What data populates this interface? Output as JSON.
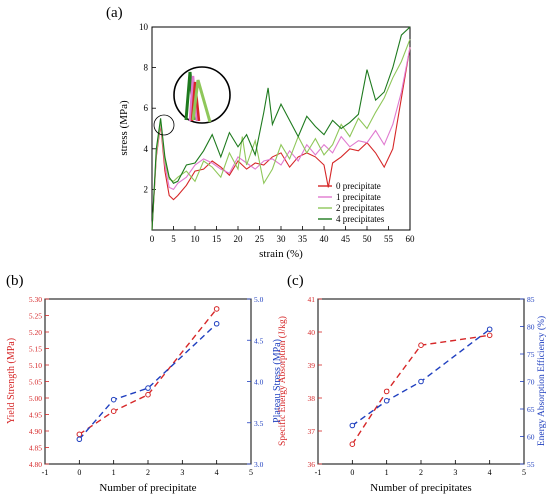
{
  "panel_labels": {
    "a": "(a)",
    "b": "(b)",
    "c": "(c)"
  },
  "colors": {
    "red": "#d62728",
    "blue": "#1f3fbf",
    "green0": "#e04040",
    "pink": "#e07ad0",
    "lightgreen": "#8fc75a",
    "darkgreen": "#1e7a1e"
  },
  "chart_data": [
    {
      "id": "a",
      "type": "line",
      "title": "",
      "xlabel": "strain (%)",
      "ylabel": "stress (MPa)",
      "xlim": [
        0,
        60
      ],
      "ylim": [
        0,
        10
      ],
      "xticks": [
        0,
        5,
        10,
        15,
        20,
        25,
        30,
        35,
        40,
        45,
        50,
        55,
        60
      ],
      "yticks": [
        2,
        4,
        6,
        8,
        10
      ],
      "legend_position": "bottom-right",
      "series": [
        {
          "name": "0 precipitate",
          "color": "#d62728",
          "x": [
            0,
            1,
            2,
            3,
            4,
            5,
            6,
            8,
            10,
            12,
            14,
            16,
            18,
            20,
            22,
            24,
            26,
            28,
            30,
            32,
            34,
            36,
            38,
            40,
            41,
            42,
            44,
            46,
            48,
            50,
            52,
            54,
            56,
            58,
            60
          ],
          "y": [
            0,
            3.6,
            5.2,
            2.9,
            1.7,
            1.5,
            1.7,
            2.2,
            2.9,
            3.0,
            3.4,
            3.1,
            2.7,
            3.4,
            3.0,
            3.3,
            3.2,
            3.6,
            3.8,
            3.1,
            3.6,
            3.8,
            3.6,
            3.2,
            2.1,
            3.3,
            3.6,
            4.0,
            3.9,
            4.3,
            3.8,
            3.1,
            4.0,
            6.5,
            9.0
          ]
        },
        {
          "name": "1 precipitate",
          "color": "#e07ad0",
          "x": [
            0,
            1,
            2,
            3,
            4,
            5,
            6,
            8,
            10,
            12,
            14,
            16,
            18,
            20,
            22,
            24,
            26,
            28,
            30,
            32,
            34,
            36,
            38,
            40,
            42,
            44,
            46,
            48,
            50,
            52,
            54,
            56,
            58,
            60
          ],
          "y": [
            0,
            3.7,
            5.3,
            3.2,
            2.1,
            2.0,
            2.3,
            2.6,
            3.2,
            3.5,
            3.3,
            3.0,
            2.8,
            3.6,
            3.3,
            3.0,
            3.4,
            3.5,
            3.2,
            3.9,
            3.4,
            4.2,
            3.7,
            4.2,
            3.8,
            4.6,
            4.1,
            4.4,
            4.3,
            4.9,
            4.2,
            5.2,
            6.8,
            9.0
          ]
        },
        {
          "name": "2 precipitates",
          "color": "#8fc75a",
          "x": [
            0,
            1,
            2,
            3,
            4,
            5,
            6,
            8,
            10,
            12,
            14,
            16,
            18,
            20,
            21,
            22,
            24,
            26,
            28,
            30,
            32,
            34,
            36,
            38,
            40,
            42,
            44,
            46,
            48,
            50,
            52,
            54,
            56,
            58,
            60
          ],
          "y": [
            0,
            3.8,
            5.4,
            3.4,
            2.5,
            2.4,
            2.6,
            2.9,
            2.4,
            3.4,
            3.1,
            2.6,
            3.8,
            3.0,
            4.6,
            3.2,
            4.4,
            2.3,
            3.0,
            4.2,
            3.5,
            4.6,
            3.8,
            4.5,
            3.7,
            4.2,
            5.2,
            4.6,
            5.5,
            5.0,
            5.8,
            6.5,
            7.5,
            8.3,
            9.4
          ]
        },
        {
          "name": "4 precipitates",
          "color": "#1e7a1e",
          "x": [
            0,
            1,
            2,
            3,
            4,
            5,
            6,
            8,
            10,
            12,
            14,
            16,
            18,
            20,
            22,
            24,
            26,
            27,
            28,
            30,
            32,
            34,
            36,
            38,
            40,
            42,
            44,
            46,
            48,
            50,
            52,
            54,
            56,
            58,
            60
          ],
          "y": [
            0,
            4.0,
            5.5,
            3.6,
            2.6,
            2.3,
            2.4,
            3.2,
            3.3,
            3.9,
            4.7,
            3.6,
            4.8,
            4.1,
            4.7,
            3.7,
            5.8,
            7.0,
            5.2,
            6.2,
            5.4,
            4.6,
            5.6,
            5.1,
            4.7,
            5.4,
            5.0,
            5.3,
            5.7,
            7.9,
            6.4,
            6.8,
            8.0,
            9.6,
            10.0
          ]
        }
      ]
    },
    {
      "id": "b",
      "type": "line",
      "title": "",
      "xlabel": "Number of precipitate",
      "ylabel": "Yield Strength (MPa)",
      "ylabel_right": "Plateau Stress (MPa)",
      "xlim": [
        -1,
        5
      ],
      "ylim": [
        4.8,
        5.3
      ],
      "ylim_right": [
        3.0,
        5.0
      ],
      "xticks": [
        -1,
        0,
        1,
        2,
        3,
        4,
        5
      ],
      "yticks": [
        4.8,
        4.85,
        4.9,
        4.95,
        5.0,
        5.05,
        5.1,
        5.15,
        5.2,
        5.25,
        5.3
      ],
      "yticks_right": [
        3.0,
        3.5,
        4.0,
        4.5,
        5.0
      ],
      "series": [
        {
          "axis": "left",
          "color": "#d62728",
          "x": [
            0,
            1,
            2,
            4
          ],
          "values": [
            4.89,
            4.96,
            5.01,
            5.27
          ]
        },
        {
          "axis": "right",
          "color": "#1f3fbf",
          "x": [
            0,
            1,
            2,
            4
          ],
          "values": [
            3.3,
            3.78,
            3.92,
            4.7
          ]
        }
      ]
    },
    {
      "id": "c",
      "type": "line",
      "title": "",
      "xlabel": "Number of precipitates",
      "ylabel": "Specific Energy Absorption (J/kg)",
      "ylabel_right": "Energy Absorption Efficiency (%)",
      "xlim": [
        -1,
        5
      ],
      "ylim": [
        36,
        41
      ],
      "ylim_right": [
        55,
        85
      ],
      "xticks": [
        -1,
        0,
        1,
        2,
        3,
        4,
        5
      ],
      "yticks": [
        36,
        37,
        38,
        39,
        40,
        41
      ],
      "yticks_right": [
        55,
        60,
        65,
        70,
        75,
        80,
        85
      ],
      "series": [
        {
          "axis": "left",
          "color": "#d62728",
          "x": [
            0,
            1,
            2,
            4
          ],
          "values": [
            36.6,
            38.2,
            39.6,
            39.9
          ]
        },
        {
          "axis": "right",
          "color": "#1f3fbf",
          "x": [
            0,
            1,
            2,
            4
          ],
          "values": [
            62,
            66.5,
            70,
            79.5
          ]
        }
      ]
    }
  ]
}
